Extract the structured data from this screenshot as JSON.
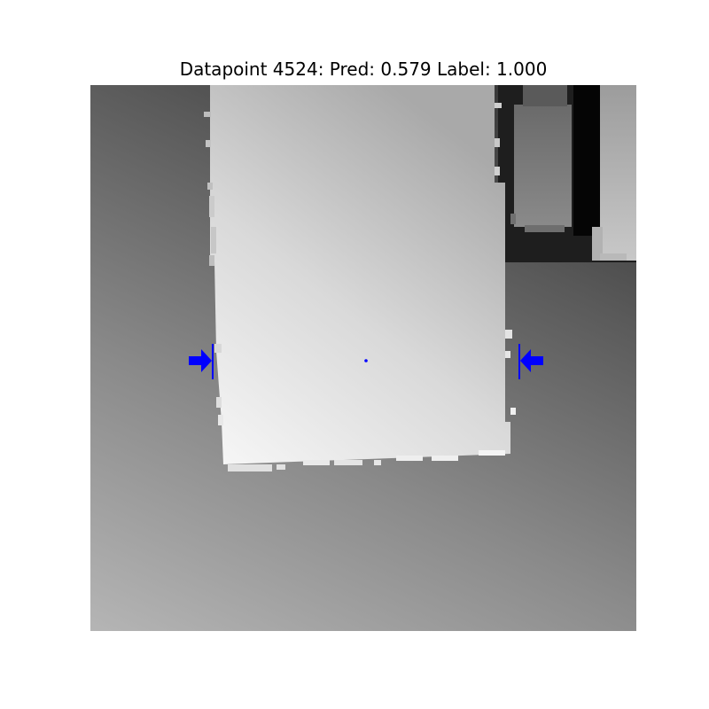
{
  "figure": {
    "title": "Datapoint 4524: Pred: 0.579 Label: 1.000"
  },
  "image": {
    "kind": "grayscale depth map",
    "overlay_color": "#0000ff",
    "annotations": [
      "left-grasp-arrow",
      "right-grasp-arrow",
      "grasp-center-point"
    ]
  }
}
